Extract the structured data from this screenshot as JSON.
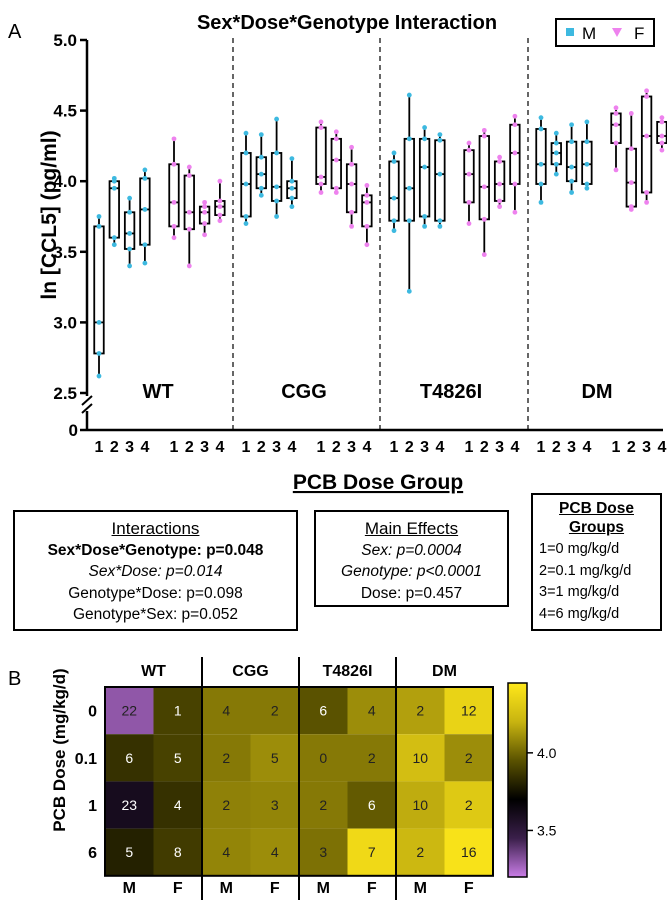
{
  "chart_data": [
    {
      "type": "box",
      "panel_label": "A",
      "title": "Sex*Dose*Genotype Interaction",
      "ylabel": "ln [CCL5] (pg/ml)",
      "xlabel": "PCB Dose Group",
      "ylim": [
        2.5,
        5.0
      ],
      "y_axis_break": true,
      "y_ticks": [
        "5.0",
        "4.5",
        "4.0",
        "3.5",
        "3.0",
        "2.5"
      ],
      "y_zero_label": "0",
      "genotypes": [
        "WT",
        "CGG",
        "T4826I",
        "DM"
      ],
      "dose_labels": [
        "1",
        "2",
        "3",
        "4"
      ],
      "legend": {
        "M": {
          "label": "M",
          "color": "#3db9e0",
          "marker": "square"
        },
        "F": {
          "label": "F",
          "color": "#ee82ee",
          "marker": "triangle-down"
        },
        "position": "top-right"
      },
      "series": [
        {
          "genotype": "WT",
          "sex": "M",
          "dose": "1",
          "min": 2.62,
          "q1": 2.78,
          "median": 3.0,
          "q3": 3.68,
          "max": 3.75
        },
        {
          "genotype": "WT",
          "sex": "M",
          "dose": "2",
          "min": 3.55,
          "q1": 3.6,
          "median": 3.95,
          "q3": 4.0,
          "max": 4.02
        },
        {
          "genotype": "WT",
          "sex": "M",
          "dose": "3",
          "min": 3.4,
          "q1": 3.52,
          "median": 3.63,
          "q3": 3.78,
          "max": 3.88
        },
        {
          "genotype": "WT",
          "sex": "M",
          "dose": "4",
          "min": 3.42,
          "q1": 3.55,
          "median": 3.8,
          "q3": 4.02,
          "max": 4.08
        },
        {
          "genotype": "WT",
          "sex": "F",
          "dose": "1",
          "min": 3.6,
          "q1": 3.68,
          "median": 3.85,
          "q3": 4.12,
          "max": 4.3
        },
        {
          "genotype": "WT",
          "sex": "F",
          "dose": "2",
          "min": 3.4,
          "q1": 3.66,
          "median": 3.78,
          "q3": 4.04,
          "max": 4.1
        },
        {
          "genotype": "WT",
          "sex": "F",
          "dose": "3",
          "min": 3.62,
          "q1": 3.7,
          "median": 3.78,
          "q3": 3.82,
          "max": 3.85
        },
        {
          "genotype": "WT",
          "sex": "F",
          "dose": "4",
          "min": 3.72,
          "q1": 3.76,
          "median": 3.82,
          "q3": 3.86,
          "max": 4.0
        },
        {
          "genotype": "CGG",
          "sex": "M",
          "dose": "1",
          "min": 3.7,
          "q1": 3.75,
          "median": 3.98,
          "q3": 4.2,
          "max": 4.34
        },
        {
          "genotype": "CGG",
          "sex": "M",
          "dose": "2",
          "min": 3.9,
          "q1": 3.95,
          "median": 4.05,
          "q3": 4.17,
          "max": 4.33
        },
        {
          "genotype": "CGG",
          "sex": "M",
          "dose": "3",
          "min": 3.75,
          "q1": 3.86,
          "median": 3.96,
          "q3": 4.2,
          "max": 4.44
        },
        {
          "genotype": "CGG",
          "sex": "M",
          "dose": "4",
          "min": 3.82,
          "q1": 3.88,
          "median": 3.95,
          "q3": 4.0,
          "max": 4.16
        },
        {
          "genotype": "CGG",
          "sex": "F",
          "dose": "1",
          "min": 3.92,
          "q1": 3.98,
          "median": 4.03,
          "q3": 4.38,
          "max": 4.42
        },
        {
          "genotype": "CGG",
          "sex": "F",
          "dose": "2",
          "min": 3.92,
          "q1": 3.95,
          "median": 4.15,
          "q3": 4.3,
          "max": 4.35
        },
        {
          "genotype": "CGG",
          "sex": "F",
          "dose": "3",
          "min": 3.68,
          "q1": 3.78,
          "median": 3.98,
          "q3": 4.12,
          "max": 4.24
        },
        {
          "genotype": "CGG",
          "sex": "F",
          "dose": "4",
          "min": 3.55,
          "q1": 3.68,
          "median": 3.85,
          "q3": 3.9,
          "max": 3.97
        },
        {
          "genotype": "T4826I",
          "sex": "M",
          "dose": "1",
          "min": 3.65,
          "q1": 3.72,
          "median": 3.88,
          "q3": 4.14,
          "max": 4.2
        },
        {
          "genotype": "T4826I",
          "sex": "M",
          "dose": "2",
          "min": 3.22,
          "q1": 3.72,
          "median": 3.95,
          "q3": 4.3,
          "max": 4.61
        },
        {
          "genotype": "T4826I",
          "sex": "M",
          "dose": "3",
          "min": 3.68,
          "q1": 3.75,
          "median": 4.1,
          "q3": 4.3,
          "max": 4.38
        },
        {
          "genotype": "T4826I",
          "sex": "M",
          "dose": "4",
          "min": 3.68,
          "q1": 3.72,
          "median": 4.05,
          "q3": 4.29,
          "max": 4.33
        },
        {
          "genotype": "T4826I",
          "sex": "F",
          "dose": "1",
          "min": 3.7,
          "q1": 3.85,
          "median": 4.05,
          "q3": 4.22,
          "max": 4.27
        },
        {
          "genotype": "T4826I",
          "sex": "F",
          "dose": "2",
          "min": 3.48,
          "q1": 3.73,
          "median": 3.96,
          "q3": 4.32,
          "max": 4.36
        },
        {
          "genotype": "T4826I",
          "sex": "F",
          "dose": "3",
          "min": 3.82,
          "q1": 3.86,
          "median": 3.98,
          "q3": 4.14,
          "max": 4.17
        },
        {
          "genotype": "T4826I",
          "sex": "F",
          "dose": "4",
          "min": 3.78,
          "q1": 3.98,
          "median": 4.2,
          "q3": 4.4,
          "max": 4.46
        },
        {
          "genotype": "DM",
          "sex": "M",
          "dose": "1",
          "min": 3.85,
          "q1": 3.98,
          "median": 4.12,
          "q3": 4.37,
          "max": 4.45
        },
        {
          "genotype": "DM",
          "sex": "M",
          "dose": "2",
          "min": 4.05,
          "q1": 4.12,
          "median": 4.2,
          "q3": 4.27,
          "max": 4.34
        },
        {
          "genotype": "DM",
          "sex": "M",
          "dose": "3",
          "min": 3.92,
          "q1": 4.0,
          "median": 4.1,
          "q3": 4.28,
          "max": 4.4
        },
        {
          "genotype": "DM",
          "sex": "M",
          "dose": "4",
          "min": 3.95,
          "q1": 3.98,
          "median": 4.12,
          "q3": 4.28,
          "max": 4.42
        },
        {
          "genotype": "DM",
          "sex": "F",
          "dose": "1",
          "min": 4.08,
          "q1": 4.27,
          "median": 4.4,
          "q3": 4.48,
          "max": 4.52
        },
        {
          "genotype": "DM",
          "sex": "F",
          "dose": "2",
          "min": 3.8,
          "q1": 3.82,
          "median": 3.99,
          "q3": 4.23,
          "max": 4.48
        },
        {
          "genotype": "DM",
          "sex": "F",
          "dose": "3",
          "min": 3.85,
          "q1": 3.92,
          "median": 4.32,
          "q3": 4.6,
          "max": 4.64
        },
        {
          "genotype": "DM",
          "sex": "F",
          "dose": "4",
          "min": 4.22,
          "q1": 4.27,
          "median": 4.32,
          "q3": 4.42,
          "max": 4.45
        }
      ]
    },
    {
      "type": "heatmap",
      "panel_label": "B",
      "ylabel": "PCB Dose (mg/kg/d)",
      "genotypes": [
        "WT",
        "CGG",
        "T4826I",
        "DM"
      ],
      "columns": [
        "M",
        "F",
        "M",
        "F",
        "M",
        "F",
        "M",
        "F"
      ],
      "rows": [
        "0",
        "0.1",
        "1",
        "6"
      ],
      "cell_labels": [
        [
          "22",
          "1",
          "4",
          "2",
          "6",
          "4",
          "2",
          "12"
        ],
        [
          "6",
          "5",
          "2",
          "5",
          "0",
          "2",
          "10",
          "2"
        ],
        [
          "23",
          "4",
          "2",
          "3",
          "2",
          "6",
          "10",
          "2"
        ],
        [
          "5",
          "8",
          "4",
          "4",
          "3",
          "7",
          "2",
          "16"
        ]
      ],
      "cell_values": [
        [
          3.3,
          3.9,
          4.05,
          4.05,
          3.95,
          4.1,
          4.15,
          4.35
        ],
        [
          3.85,
          3.9,
          4.05,
          4.1,
          4.05,
          4.05,
          4.25,
          4.1
        ],
        [
          3.6,
          3.85,
          4.07,
          4.08,
          4.05,
          3.97,
          4.18,
          4.3
        ],
        [
          3.8,
          3.88,
          4.08,
          4.1,
          4.03,
          4.38,
          4.22,
          4.42
        ]
      ],
      "colorbar": {
        "ticks": [
          "4.0",
          "3.5"
        ],
        "tick_values": [
          4.0,
          3.5
        ],
        "range": [
          3.2,
          4.45
        ],
        "colors": [
          "#c97de6",
          "#3a1f4a",
          "#000000",
          "#5a5200",
          "#c8b410",
          "#ffe81a"
        ]
      }
    }
  ],
  "stats": {
    "interactions": {
      "title": "Interactions",
      "line1": "Sex*Dose*Genotype: p=0.048",
      "line2": "Sex*Dose: p=0.014",
      "line3": "Genotype*Dose: p=0.098",
      "line4": "Genotype*Sex: p=0.052"
    },
    "main_effects": {
      "title": "Main Effects",
      "line1": "Sex: p=0.0004",
      "line2": "Genotype: p<0.0001",
      "line3": "Dose: p=0.457"
    },
    "dose_groups": {
      "title": "PCB Dose Groups",
      "line1": "1=0 mg/kg/d",
      "line2": "2=0.1 mg/kg/d",
      "line3": "3=1 mg/kg/d",
      "line4": "4=6 mg/kg/d"
    }
  }
}
